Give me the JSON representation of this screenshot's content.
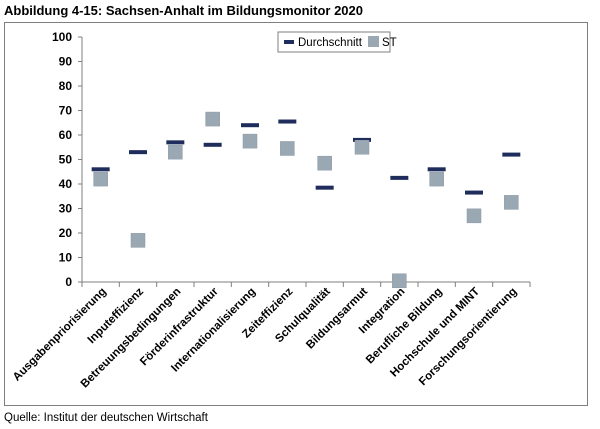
{
  "title": "Abbildung 4-15: Sachsen-Anhalt im Bildungsmonitor 2020",
  "source": "Quelle: Institut der deutschen Wirtschaft",
  "chart_data": {
    "type": "scatter",
    "categories": [
      "Ausgabenpriorisierung",
      "Inputeffizienz",
      "Betreuungsbedingungen",
      "Förderinfrastruktur",
      "Internationalisierung",
      "Zeiteffizienz",
      "Schulqualität",
      "Bildungsarmut",
      "Integration",
      "Berufliche Bildung",
      "Hochschule und MINT",
      "Forschungsorientierung"
    ],
    "series": [
      {
        "name": "Durchschnitt",
        "marker": "dash",
        "color": "#1f2d5c",
        "values": [
          46,
          53,
          57,
          56,
          64,
          65.5,
          38.5,
          58,
          42.5,
          46,
          36.5,
          52
        ]
      },
      {
        "name": "ST",
        "marker": "square",
        "color": "#9aa8b4",
        "values": [
          42,
          17,
          53,
          66.5,
          57.5,
          54.5,
          48.5,
          55,
          0.5,
          42,
          27,
          32.5
        ]
      }
    ],
    "yticks": [
      "0",
      "10",
      "20",
      "30",
      "40",
      "50",
      "60",
      "70",
      "80",
      "90",
      "100"
    ],
    "ylim": [
      0,
      100
    ],
    "grid": false,
    "legend": "top-center"
  }
}
